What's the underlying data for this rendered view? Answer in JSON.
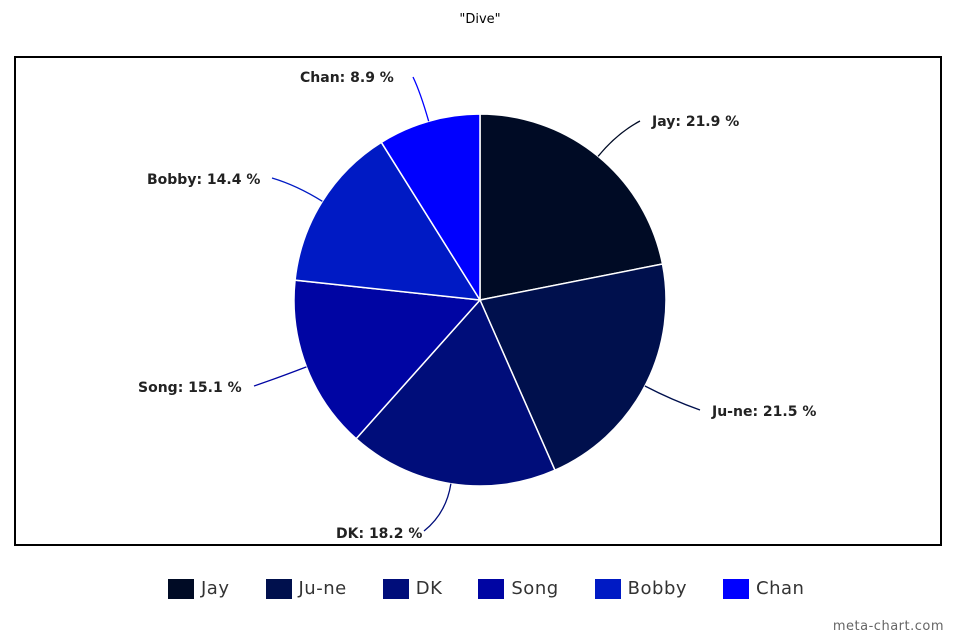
{
  "chart_data": {
    "type": "pie",
    "title": "\"Dive\"",
    "categories": [
      "Jay",
      "Ju-ne",
      "DK",
      "Song",
      "Bobby",
      "Chan"
    ],
    "values": [
      21.9,
      21.5,
      18.2,
      15.1,
      14.4,
      8.9
    ],
    "labels": [
      "Jay: 21.9 %",
      "Ju-ne: 21.5 %",
      "DK: 18.2 %",
      "Song: 15.1 %",
      "Bobby: 14.4 %",
      "Chan: 8.9 %"
    ],
    "colors": [
      "#000b25",
      "#00104d",
      "#000d7a",
      "#0005a3",
      "#001ac4",
      "#0000ff"
    ],
    "legend_position": "bottom"
  },
  "legend": {
    "items": [
      {
        "label": "Jay",
        "color": "#000b25"
      },
      {
        "label": "Ju-ne",
        "color": "#00104d"
      },
      {
        "label": "DK",
        "color": "#000d7a"
      },
      {
        "label": "Song",
        "color": "#0005a3"
      },
      {
        "label": "Bobby",
        "color": "#001ac4"
      },
      {
        "label": "Chan",
        "color": "#0000ff"
      }
    ]
  },
  "watermark": "meta-chart.com"
}
